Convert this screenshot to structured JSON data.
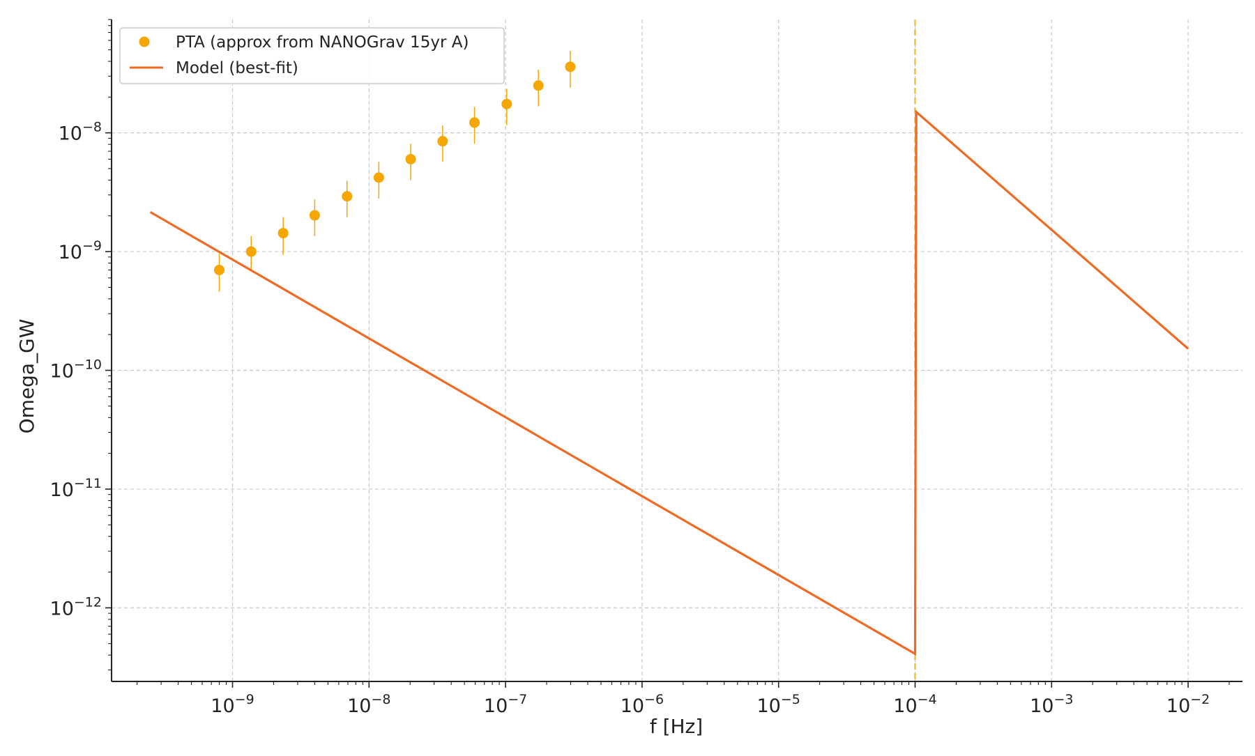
{
  "chart_data": {
    "type": "scatter",
    "xlabel": "f [Hz]",
    "ylabel": "Omega_GW",
    "xscale": "log",
    "yscale": "log",
    "xlim": [
      1.3e-10,
      0.025
    ],
    "ylim": [
      2.4e-13,
      9e-08
    ],
    "grid": true,
    "legend_position": "top-left",
    "x_ticks": [
      {
        "value": 1e-09,
        "base": "10",
        "exp": "−9"
      },
      {
        "value": 1e-08,
        "base": "10",
        "exp": "−8"
      },
      {
        "value": 1e-07,
        "base": "10",
        "exp": "−7"
      },
      {
        "value": 1e-06,
        "base": "10",
        "exp": "−6"
      },
      {
        "value": 1e-05,
        "base": "10",
        "exp": "−5"
      },
      {
        "value": 0.0001,
        "base": "10",
        "exp": "−4"
      },
      {
        "value": 0.001,
        "base": "10",
        "exp": "−3"
      },
      {
        "value": 0.01,
        "base": "10",
        "exp": "−2"
      }
    ],
    "y_ticks": [
      {
        "value": 1e-08,
        "base": "10",
        "exp": "−8"
      },
      {
        "value": 1e-09,
        "base": "10",
        "exp": "−9"
      },
      {
        "value": 1e-10,
        "base": "10",
        "exp": "−10"
      },
      {
        "value": 1e-11,
        "base": "10",
        "exp": "−11"
      },
      {
        "value": 1e-12,
        "base": "10",
        "exp": "−12"
      }
    ],
    "vertical_line": {
      "x": 0.0001,
      "color": "#f0c23a",
      "style": "dashed"
    },
    "series": [
      {
        "name": "PTA (approx from NANOGrav 15yr A)",
        "kind": "errorbar",
        "color": "#f5a600",
        "points": [
          {
            "x": 8e-10,
            "y": 7e-10,
            "ylo": 4.6e-10,
            "yhi": 9.6e-10
          },
          {
            "x": 1.37e-09,
            "y": 1e-09,
            "ylo": 6.8e-10,
            "yhi": 1.35e-09
          },
          {
            "x": 2.35e-09,
            "y": 1.43e-09,
            "ylo": 9.4e-10,
            "yhi": 1.95e-09
          },
          {
            "x": 4e-09,
            "y": 2.02e-09,
            "ylo": 1.35e-09,
            "yhi": 2.75e-09
          },
          {
            "x": 6.9e-09,
            "y": 2.92e-09,
            "ylo": 1.95e-09,
            "yhi": 3.95e-09
          },
          {
            "x": 1.18e-08,
            "y": 4.2e-09,
            "ylo": 2.8e-09,
            "yhi": 5.7e-09
          },
          {
            "x": 2.02e-08,
            "y": 6e-09,
            "ylo": 4e-09,
            "yhi": 8.1e-09
          },
          {
            "x": 3.46e-08,
            "y": 8.5e-09,
            "ylo": 5.7e-09,
            "yhi": 1.15e-08
          },
          {
            "x": 5.92e-08,
            "y": 1.22e-08,
            "ylo": 8.1e-09,
            "yhi": 1.65e-08
          },
          {
            "x": 1.02e-07,
            "y": 1.75e-08,
            "ylo": 1.16e-08,
            "yhi": 2.35e-08
          },
          {
            "x": 1.74e-07,
            "y": 2.5e-08,
            "ylo": 1.67e-08,
            "yhi": 3.4e-08
          },
          {
            "x": 2.98e-07,
            "y": 3.6e-08,
            "ylo": 2.4e-08,
            "yhi": 4.9e-08
          }
        ]
      },
      {
        "name": "Model (best-fit)",
        "kind": "line",
        "color": "#ef6a22",
        "points": [
          {
            "x": 2.5e-10,
            "y": 2.15e-09
          },
          {
            "x": 0.0001,
            "y": 4.1e-13
          },
          {
            "x": 0.000102,
            "y": 1.5e-08
          },
          {
            "x": 0.01,
            "y": 1.52e-10
          }
        ]
      }
    ]
  }
}
